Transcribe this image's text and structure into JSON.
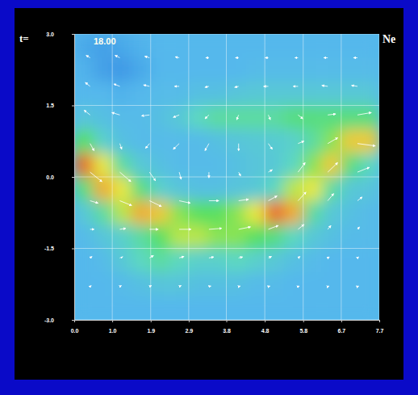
{
  "chart_data": {
    "type": "heatmap",
    "title": "Ne",
    "annotations": [
      "t=",
      "18.00"
    ],
    "xlim": [
      0,
      7.7
    ],
    "ylim": [
      -3,
      3
    ],
    "xticks": [
      {
        "value": 0,
        "label": "0.0"
      },
      {
        "value": 0.96,
        "label": "1.0"
      },
      {
        "value": 1.93,
        "label": "1.9"
      },
      {
        "value": 2.89,
        "label": "2.9"
      },
      {
        "value": 3.84,
        "label": "3.8"
      },
      {
        "value": 4.81,
        "label": "4.8"
      },
      {
        "value": 5.78,
        "label": "5.8"
      },
      {
        "value": 6.74,
        "label": "6.7"
      },
      {
        "value": 7.7,
        "label": "7.7"
      }
    ],
    "yticks": [
      {
        "value": -3,
        "label": "-3.0"
      },
      {
        "value": -1.5,
        "label": "-1.5"
      },
      {
        "value": 0,
        "label": "0.0"
      },
      {
        "value": 1.5,
        "label": "1.5"
      },
      {
        "value": 3,
        "label": "3.0"
      }
    ],
    "grid": true,
    "heatmap": {
      "x_edges": [
        0,
        0.48,
        0.96,
        1.44,
        1.93,
        2.41,
        2.89,
        3.37,
        3.85,
        4.33,
        4.81,
        5.29,
        5.78,
        6.26,
        6.74,
        7.22,
        7.7
      ],
      "y_edges": [
        3,
        2.5,
        2,
        1.5,
        1,
        0.5,
        0,
        -0.5,
        -1,
        -1.5,
        -2,
        -2.5,
        -3
      ],
      "value_range": [
        0,
        1
      ],
      "values": [
        [
          0.15,
          0.12,
          0.15,
          0.18,
          0.2,
          0.2,
          0.2,
          0.2,
          0.2,
          0.2,
          0.2,
          0.2,
          0.2,
          0.2,
          0.2,
          0.2
        ],
        [
          0.18,
          0.12,
          0.1,
          0.15,
          0.2,
          0.2,
          0.2,
          0.2,
          0.2,
          0.22,
          0.22,
          0.22,
          0.22,
          0.22,
          0.22,
          0.22
        ],
        [
          0.2,
          0.2,
          0.18,
          0.2,
          0.22,
          0.22,
          0.25,
          0.25,
          0.28,
          0.3,
          0.3,
          0.3,
          0.3,
          0.3,
          0.3,
          0.3
        ],
        [
          0.28,
          0.25,
          0.22,
          0.22,
          0.25,
          0.3,
          0.4,
          0.45,
          0.45,
          0.45,
          0.45,
          0.5,
          0.5,
          0.5,
          0.5,
          0.5
        ],
        [
          0.55,
          0.35,
          0.25,
          0.22,
          0.22,
          0.22,
          0.22,
          0.25,
          0.28,
          0.3,
          0.32,
          0.35,
          0.45,
          0.6,
          0.75,
          0.75
        ],
        [
          0.9,
          0.7,
          0.45,
          0.3,
          0.25,
          0.22,
          0.22,
          0.22,
          0.25,
          0.28,
          0.3,
          0.4,
          0.6,
          0.75,
          0.5,
          0.4
        ],
        [
          0.5,
          0.8,
          0.7,
          0.5,
          0.35,
          0.28,
          0.25,
          0.25,
          0.28,
          0.3,
          0.4,
          0.65,
          0.7,
          0.45,
          0.3,
          0.28
        ],
        [
          0.3,
          0.45,
          0.65,
          0.8,
          0.75,
          0.6,
          0.55,
          0.55,
          0.6,
          0.7,
          0.9,
          0.8,
          0.45,
          0.3,
          0.25,
          0.22
        ],
        [
          0.22,
          0.28,
          0.35,
          0.45,
          0.55,
          0.65,
          0.65,
          0.6,
          0.6,
          0.55,
          0.5,
          0.4,
          0.3,
          0.25,
          0.22,
          0.22
        ],
        [
          0.2,
          0.22,
          0.3,
          0.4,
          0.45,
          0.4,
          0.35,
          0.35,
          0.4,
          0.35,
          0.3,
          0.25,
          0.22,
          0.2,
          0.2,
          0.2
        ],
        [
          0.2,
          0.2,
          0.22,
          0.25,
          0.28,
          0.28,
          0.25,
          0.25,
          0.25,
          0.22,
          0.22,
          0.2,
          0.2,
          0.2,
          0.2,
          0.2
        ],
        [
          0.2,
          0.2,
          0.2,
          0.2,
          0.2,
          0.2,
          0.2,
          0.2,
          0.2,
          0.2,
          0.2,
          0.2,
          0.2,
          0.2,
          0.2,
          0.2
        ]
      ]
    },
    "vectors": {
      "x": [
        0.4,
        1.15,
        1.9,
        2.65,
        3.4,
        4.15,
        4.9,
        5.65,
        6.4,
        7.15
      ],
      "y": [
        2.5,
        1.9,
        1.3,
        0.7,
        0.1,
        -0.5,
        -1.1,
        -1.7,
        -2.3
      ],
      "u": [
        [
          -0.1,
          -0.12,
          -0.12,
          -0.1,
          -0.08,
          -0.08,
          -0.08,
          -0.08,
          -0.1,
          -0.1
        ],
        [
          -0.12,
          -0.15,
          -0.15,
          -0.12,
          -0.1,
          -0.1,
          -0.12,
          -0.12,
          -0.15,
          -0.15
        ],
        [
          -0.15,
          -0.2,
          -0.2,
          -0.15,
          -0.1,
          -0.05,
          0.05,
          0.12,
          0.2,
          0.35
        ],
        [
          0.1,
          0.05,
          -0.1,
          -0.15,
          -0.1,
          0,
          0.1,
          0.15,
          0.25,
          0.45
        ],
        [
          0.3,
          0.28,
          0.15,
          0.05,
          0,
          0.05,
          0.1,
          0.18,
          0.25,
          0.3
        ],
        [
          0.2,
          0.3,
          0.3,
          0.28,
          0.25,
          0.25,
          0.22,
          0.2,
          0.15,
          0.12
        ],
        [
          0.1,
          0.15,
          0.22,
          0.3,
          0.32,
          0.3,
          0.25,
          0.15,
          0.08,
          0.05
        ],
        [
          0.05,
          0.08,
          0.1,
          0.12,
          0.12,
          0.1,
          0.08,
          0.05,
          0.04,
          0.03
        ],
        [
          0.03,
          0.04,
          0.05,
          0.05,
          0.05,
          0.04,
          0.04,
          0.03,
          0.03,
          0.03
        ]
      ],
      "v": [
        [
          0.05,
          0.05,
          0.03,
          0.02,
          0,
          0,
          0,
          0,
          0,
          0
        ],
        [
          0.08,
          0.05,
          0.03,
          0,
          -0.02,
          -0.02,
          0,
          0,
          0.02,
          0.02
        ],
        [
          0.1,
          0.05,
          -0.02,
          -0.05,
          -0.08,
          -0.1,
          -0.1,
          -0.08,
          0.02,
          0.05
        ],
        [
          -0.15,
          -0.12,
          -0.1,
          -0.12,
          -0.15,
          -0.15,
          -0.12,
          0.05,
          0.12,
          -0.05
        ],
        [
          -0.2,
          -0.2,
          -0.18,
          -0.15,
          -0.12,
          -0.08,
          0.05,
          0.2,
          0.2,
          0.1
        ],
        [
          -0.05,
          -0.1,
          -0.12,
          -0.05,
          0,
          0.03,
          0.1,
          0.18,
          0.15,
          0.08
        ],
        [
          0,
          0.02,
          0,
          0,
          0.02,
          0.05,
          0.08,
          0.1,
          0.08,
          0.05
        ],
        [
          0.03,
          0.03,
          0.05,
          0.03,
          0.02,
          0.02,
          0.03,
          0.03,
          0.02,
          0.02
        ],
        [
          0.02,
          0.02,
          0.02,
          0.02,
          0.01,
          0.01,
          0.01,
          0.01,
          0.01,
          0.01
        ]
      ]
    }
  }
}
